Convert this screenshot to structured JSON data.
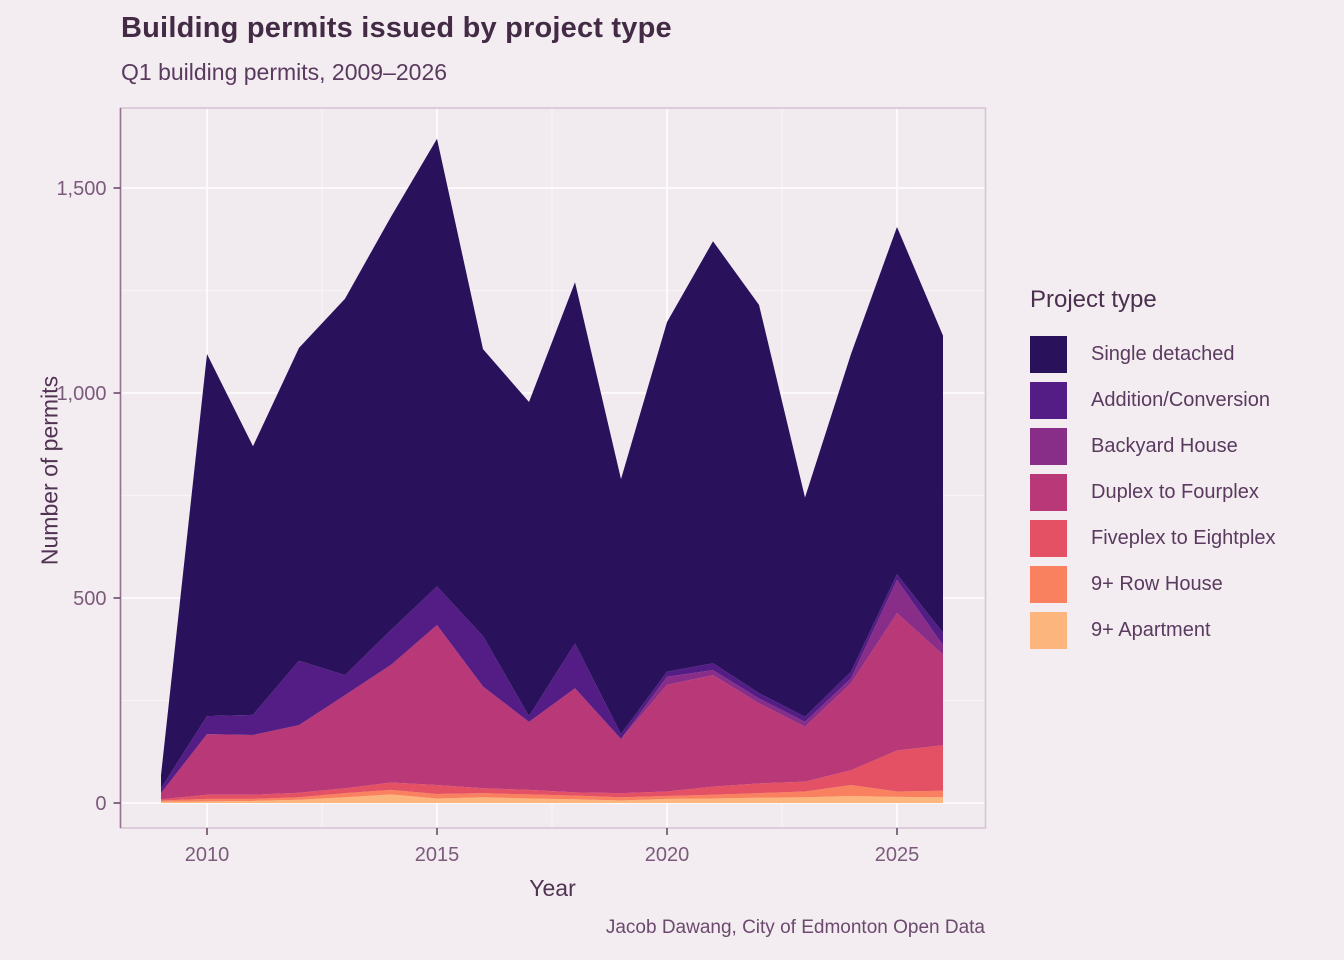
{
  "title": "Building permits issued by project type",
  "subtitle": "Q1 building permits, 2009–2026",
  "caption": "Jacob Dawang, City of Edmonton Open Data",
  "legend": {
    "title": "Project type"
  },
  "axes": {
    "x_label": "Year",
    "y_label": "Number of permits",
    "x_tick_labels": [
      "2010",
      "2015",
      "2020",
      "2025"
    ],
    "x_tick_values": [
      2010,
      2015,
      2020,
      2025
    ],
    "y_tick_labels": [
      "0",
      "500",
      "1,000",
      "1,500"
    ],
    "y_tick_values": [
      0,
      500,
      1000,
      1500
    ]
  },
  "colors": {
    "background": "#F3EDF1",
    "panel_background": "#F1EAEE",
    "grid_major": "#FDFBFC",
    "grid_minor": "#F8F3F6",
    "panel_border": "#D8C5D4",
    "axis_line_left": "#977295",
    "tick_mark": "#6B4A6B",
    "tick_label": "#7B5A7B",
    "title_text": "#432B46",
    "subtitle_text": "#5A3A5E",
    "caption_text": "#6B4A6D"
  },
  "chart_data": {
    "type": "area",
    "stacked": true,
    "title": "Building permits issued by project type",
    "subtitle": "Q1 building permits, 2009–2026",
    "xlabel": "Year",
    "ylabel": "Number of permits",
    "legend_title": "Project type",
    "legend_position": "right",
    "grid": true,
    "x": [
      2009,
      2010,
      2011,
      2012,
      2013,
      2014,
      2015,
      2016,
      2017,
      2018,
      2019,
      2020,
      2021,
      2022,
      2023,
      2024,
      2025,
      2026
    ],
    "xlim": [
      2008.1,
      2026.9
    ],
    "ylim": [
      0,
      1690
    ],
    "x_ticks_major": [
      2010,
      2015,
      2020,
      2025
    ],
    "x_ticks_minor": [
      2012.5,
      2017.5,
      2022.5
    ],
    "y_ticks_major": [
      0,
      500,
      1000,
      1500
    ],
    "y_ticks_minor": [
      250,
      750,
      1250
    ],
    "stack_note": "series listed top-of-stack first (legend order); totals per year are sums",
    "series": [
      {
        "name": "Single detached",
        "color": "#2A115C",
        "values": [
          32,
          883,
          655,
          763,
          918,
          1008,
          1092,
          700,
          766,
          881,
          622,
          853,
          1029,
          947,
          535,
          775,
          847,
          725
        ]
      },
      {
        "name": "Addition/Conversion",
        "color": "#541C85",
        "values": [
          12,
          44,
          49,
          157,
          49,
          85,
          94,
          123,
          14,
          109,
          12,
          12,
          17,
          13,
          12,
          16,
          14,
          30
        ]
      },
      {
        "name": "Backyard House",
        "color": "#882D88",
        "values": [
          0,
          0,
          0,
          0,
          0,
          0,
          0,
          0,
          0,
          0,
          0,
          20,
          12,
          12,
          12,
          12,
          81,
          23
        ]
      },
      {
        "name": "Duplex to Fourplex",
        "color": "#B93877",
        "values": [
          15,
          148,
          146,
          165,
          227,
          287,
          390,
          248,
          166,
          254,
          132,
          260,
          272,
          195,
          134,
          212,
          335,
          221
        ]
      },
      {
        "name": "Fiveplex to Eightplex",
        "color": "#E45164",
        "values": [
          3,
          10,
          10,
          11,
          12,
          18,
          22,
          12,
          11,
          8,
          10,
          11,
          20,
          24,
          24,
          36,
          100,
          111
        ]
      },
      {
        "name": "9+ Row House",
        "color": "#F9815F",
        "values": [
          3,
          6,
          5,
          6,
          10,
          11,
          11,
          10,
          10,
          9,
          8,
          7,
          9,
          11,
          14,
          27,
          13,
          16
        ]
      },
      {
        "name": "9+ Apartment",
        "color": "#FDB57E",
        "values": [
          3,
          4,
          5,
          8,
          14,
          21,
          11,
          14,
          11,
          9,
          6,
          10,
          11,
          13,
          14,
          17,
          15,
          14
        ]
      }
    ]
  }
}
